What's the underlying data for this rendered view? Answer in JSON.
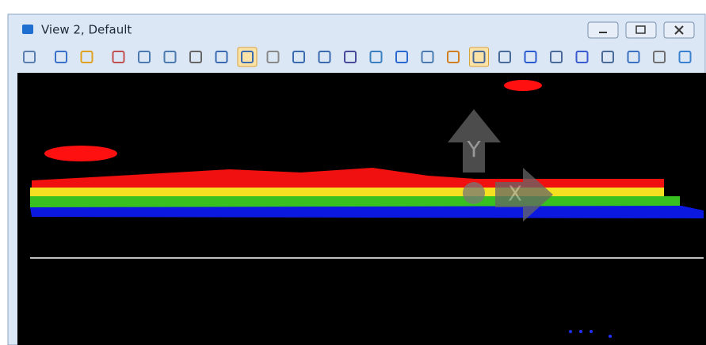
{
  "window": {
    "title": "View 2, Default"
  },
  "view": {
    "axis_labels": {
      "y": "Y",
      "x": "X"
    }
  }
}
